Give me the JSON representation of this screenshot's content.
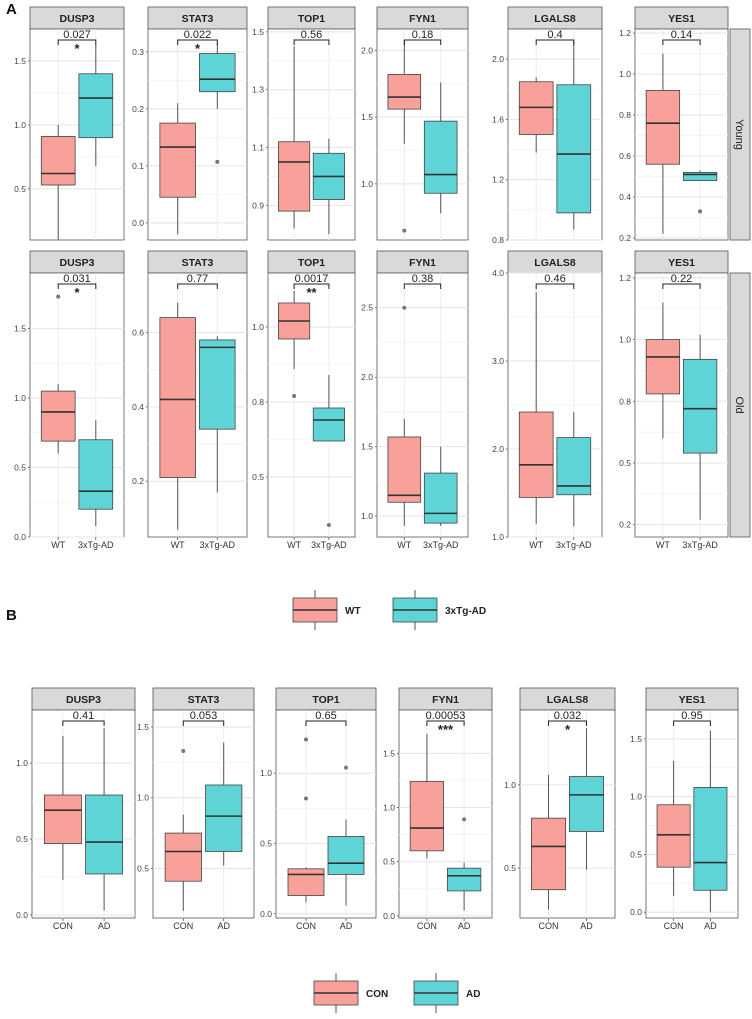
{
  "figure": {
    "panel_a_label": "A",
    "panel_b_label": "B",
    "row_labels": [
      "Young",
      "Old"
    ],
    "colors": {
      "wt": "#f8a19b",
      "tg": "#5ed4d6",
      "con": "#f8a19b",
      "ad": "#5ed4d6",
      "strip": "#d9d9d9",
      "median": "#333333",
      "whisker": "#555555"
    },
    "legend_a": [
      "WT",
      "3xTg-AD"
    ],
    "legend_b": [
      "CON",
      "AD"
    ]
  },
  "chart_data": [
    {
      "type": "box",
      "panel": "A",
      "row": "Young",
      "title": "DUSP3",
      "categories": [
        "WT",
        "3xTg-AD"
      ],
      "ylim": [
        0.1,
        1.75
      ],
      "yticks": [
        "0.5",
        "1.0",
        "1.5"
      ],
      "ytick_values": [
        0.5,
        1.0,
        1.5
      ],
      "pvalue": "0.027",
      "signif": "*",
      "series": [
        {
          "name": "WT",
          "min": 0.1,
          "q1": 0.53,
          "median": 0.62,
          "q3": 0.91,
          "max": 1.0,
          "outliers": []
        },
        {
          "name": "3xTg-AD",
          "min": 0.68,
          "q1": 0.9,
          "median": 1.21,
          "q3": 1.4,
          "max": 1.63,
          "outliers": []
        }
      ]
    },
    {
      "type": "box",
      "panel": "A",
      "row": "Young",
      "title": "STAT3",
      "categories": [
        "WT",
        "3xTg-AD"
      ],
      "ylim": [
        -0.03,
        0.34
      ],
      "yticks": [
        "0.0",
        "0.1",
        "0.2",
        "0.3"
      ],
      "ytick_values": [
        0.0,
        0.1,
        0.2,
        0.3
      ],
      "pvalue": "0.022",
      "signif": "*",
      "series": [
        {
          "name": "WT",
          "min": -0.02,
          "q1": 0.045,
          "median": 0.133,
          "q3": 0.175,
          "max": 0.21,
          "outliers": []
        },
        {
          "name": "3xTg-AD",
          "min": 0.2,
          "q1": 0.23,
          "median": 0.252,
          "q3": 0.297,
          "max": 0.315,
          "outliers": [
            0.107
          ]
        }
      ]
    },
    {
      "type": "box",
      "panel": "A",
      "row": "Young",
      "title": "TOP1",
      "categories": [
        "WT",
        "3xTg-AD"
      ],
      "ylim": [
        0.78,
        1.51
      ],
      "yticks": [
        "0.9",
        "1.1",
        "1.3",
        "1.5"
      ],
      "ytick_values": [
        0.9,
        1.1,
        1.3,
        1.5
      ],
      "pvalue": "0.56",
      "signif": "",
      "series": [
        {
          "name": "WT",
          "min": 0.82,
          "q1": 0.88,
          "median": 1.05,
          "q3": 1.12,
          "max": 1.45,
          "outliers": []
        },
        {
          "name": "3xTg-AD",
          "min": 0.8,
          "q1": 0.92,
          "median": 1.0,
          "q3": 1.08,
          "max": 1.13,
          "outliers": []
        }
      ]
    },
    {
      "type": "box",
      "panel": "A",
      "row": "Young",
      "title": "FYN1",
      "categories": [
        "WT",
        "3xTg-AD"
      ],
      "ylim": [
        0.58,
        2.16
      ],
      "yticks": [
        "1.0",
        "1.5",
        "2.0"
      ],
      "ytick_values": [
        1.0,
        1.5,
        2.0
      ],
      "pvalue": "0.18",
      "signif": "",
      "series": [
        {
          "name": "WT",
          "min": 1.3,
          "q1": 1.56,
          "median": 1.65,
          "q3": 1.82,
          "max": 2.08,
          "outliers": [
            0.65
          ]
        },
        {
          "name": "3xTg-AD",
          "min": 0.78,
          "q1": 0.93,
          "median": 1.07,
          "q3": 1.47,
          "max": 1.76,
          "outliers": []
        }
      ]
    },
    {
      "type": "box",
      "panel": "A",
      "row": "Young",
      "title": "LGALS8",
      "categories": [
        "WT",
        "3xTg-AD"
      ],
      "ylim": [
        0.8,
        2.2
      ],
      "yticks": [
        "0.8",
        "1.2",
        "1.6",
        "2.0"
      ],
      "ytick_values": [
        0.8,
        1.2,
        1.6,
        2.0
      ],
      "pvalue": "0.4",
      "signif": "",
      "series": [
        {
          "name": "WT",
          "min": 1.38,
          "q1": 1.5,
          "median": 1.68,
          "q3": 1.85,
          "max": 1.88,
          "outliers": []
        },
        {
          "name": "3xTg-AD",
          "min": 0.87,
          "q1": 0.98,
          "median": 1.37,
          "q3": 1.83,
          "max": 2.12,
          "outliers": []
        }
      ]
    },
    {
      "type": "box",
      "panel": "A",
      "row": "Young",
      "title": "YES1",
      "categories": [
        "WT",
        "3xTg-AD"
      ],
      "ylim": [
        0.19,
        1.22
      ],
      "yticks": [
        "0.2",
        "0.4",
        "0.6",
        "0.8",
        "1.0",
        "1.2"
      ],
      "ytick_values": [
        0.2,
        0.4,
        0.6,
        0.8,
        1.0,
        1.2
      ],
      "pvalue": "0.14",
      "signif": "",
      "series": [
        {
          "name": "WT",
          "min": 0.22,
          "q1": 0.56,
          "median": 0.76,
          "q3": 0.92,
          "max": 1.1,
          "outliers": []
        },
        {
          "name": "3xTg-AD",
          "min": 0.48,
          "q1": 0.48,
          "median": 0.51,
          "q3": 0.52,
          "max": 0.53,
          "outliers": [
            0.33
          ]
        }
      ]
    },
    {
      "type": "box",
      "panel": "A",
      "row": "Old",
      "title": "DUSP3",
      "categories": [
        "WT",
        "3xTg-AD"
      ],
      "ylim": [
        0.0,
        1.9
      ],
      "yticks": [
        "0.0",
        "0.5",
        "1.0",
        "1.5"
      ],
      "ytick_values": [
        0.0,
        0.5,
        1.0,
        1.5
      ],
      "pvalue": "0.031",
      "signif": "*",
      "series": [
        {
          "name": "WT",
          "min": 0.6,
          "q1": 0.69,
          "median": 0.9,
          "q3": 1.05,
          "max": 1.1,
          "outliers": [
            1.73
          ]
        },
        {
          "name": "3xTg-AD",
          "min": 0.08,
          "q1": 0.2,
          "median": 0.33,
          "q3": 0.7,
          "max": 0.84,
          "outliers": []
        }
      ]
    },
    {
      "type": "box",
      "panel": "A",
      "row": "Old",
      "title": "STAT3",
      "categories": [
        "WT",
        "3xTg-AD"
      ],
      "ylim": [
        0.05,
        0.76
      ],
      "yticks": [
        "0.2",
        "0.4",
        "0.6"
      ],
      "ytick_values": [
        0.2,
        0.4,
        0.6
      ],
      "pvalue": "0.77",
      "signif": "",
      "series": [
        {
          "name": "WT",
          "min": 0.07,
          "q1": 0.21,
          "median": 0.42,
          "q3": 0.64,
          "max": 0.68,
          "outliers": []
        },
        {
          "name": "3xTg-AD",
          "min": 0.17,
          "q1": 0.34,
          "median": 0.56,
          "q3": 0.58,
          "max": 0.59,
          "outliers": []
        }
      ]
    },
    {
      "type": "box",
      "panel": "A",
      "row": "Old",
      "title": "TOP1",
      "categories": [
        "WT",
        "3xTg-AD"
      ],
      "ylim": [
        0.3,
        1.18
      ],
      "yticks": [
        "0.5",
        "0.8",
        "1.0"
      ],
      "ytick_values": [
        0.5,
        0.75,
        1.0
      ],
      "pvalue": "0.0017",
      "signif": "**",
      "series": [
        {
          "name": "WT",
          "min": 0.86,
          "q1": 0.96,
          "median": 1.02,
          "q3": 1.08,
          "max": 1.12,
          "outliers": [
            0.77
          ]
        },
        {
          "name": "3xTg-AD",
          "min": 0.62,
          "q1": 0.62,
          "median": 0.69,
          "q3": 0.73,
          "max": 0.84,
          "outliers": [
            0.34
          ]
        }
      ]
    },
    {
      "type": "box",
      "panel": "A",
      "row": "Old",
      "title": "FYN1",
      "categories": [
        "WT",
        "3xTg-AD"
      ],
      "ylim": [
        0.85,
        2.75
      ],
      "yticks": [
        "1.0",
        "1.5",
        "2.0",
        "2.5"
      ],
      "ytick_values": [
        1.0,
        1.5,
        2.0,
        2.5
      ],
      "pvalue": "0.38",
      "signif": "",
      "series": [
        {
          "name": "WT",
          "min": 0.93,
          "q1": 1.1,
          "median": 1.15,
          "q3": 1.57,
          "max": 1.7,
          "outliers": [
            2.5
          ]
        },
        {
          "name": "3xTg-AD",
          "min": 0.93,
          "q1": 0.95,
          "median": 1.02,
          "q3": 1.31,
          "max": 1.5,
          "outliers": []
        }
      ]
    },
    {
      "type": "box",
      "panel": "A",
      "row": "Old",
      "title": "LGALS8",
      "categories": [
        "WT",
        "3xTg-AD"
      ],
      "ylim": [
        1.0,
        4.0
      ],
      "yticks": [
        "1.0",
        "2.0",
        "3.0",
        "4.0"
      ],
      "ytick_values": [
        1.0,
        2.0,
        3.0,
        4.0
      ],
      "pvalue": "0.46",
      "signif": "",
      "series": [
        {
          "name": "WT",
          "min": 1.15,
          "q1": 1.45,
          "median": 1.82,
          "q3": 2.42,
          "max": 3.78,
          "outliers": []
        },
        {
          "name": "3xTg-AD",
          "min": 1.12,
          "q1": 1.48,
          "median": 1.58,
          "q3": 2.13,
          "max": 2.42,
          "outliers": []
        }
      ]
    },
    {
      "type": "box",
      "panel": "A",
      "row": "Old",
      "title": "YES1",
      "categories": [
        "WT",
        "3xTg-AD"
      ],
      "ylim": [
        0.2,
        1.27
      ],
      "yticks": [
        "0.2",
        "0.5",
        "0.8",
        "1.0",
        "1.2"
      ],
      "ytick_values": [
        0.25,
        0.5,
        0.75,
        1.0,
        1.25
      ],
      "pvalue": "0.22",
      "signif": "",
      "series": [
        {
          "name": "WT",
          "min": 0.6,
          "q1": 0.78,
          "median": 0.93,
          "q3": 1.0,
          "max": 1.15,
          "outliers": []
        },
        {
          "name": "3xTg-AD",
          "min": 0.27,
          "q1": 0.54,
          "median": 0.72,
          "q3": 0.92,
          "max": 1.02,
          "outliers": []
        }
      ]
    },
    {
      "type": "box",
      "panel": "B",
      "title": "DUSP3",
      "categories": [
        "CON",
        "AD"
      ],
      "ylim": [
        -0.02,
        1.35
      ],
      "yticks": [
        "0.0",
        "0.5",
        "1.0"
      ],
      "ytick_values": [
        0.0,
        0.5,
        1.0
      ],
      "pvalue": "0.41",
      "signif": "",
      "series": [
        {
          "name": "CON",
          "min": 0.23,
          "q1": 0.47,
          "median": 0.69,
          "q3": 0.79,
          "max": 1.18,
          "outliers": []
        },
        {
          "name": "AD",
          "min": 0.03,
          "q1": 0.27,
          "median": 0.48,
          "q3": 0.79,
          "max": 1.23,
          "outliers": []
        }
      ]
    },
    {
      "type": "box",
      "panel": "B",
      "title": "STAT3",
      "categories": [
        "CON",
        "AD"
      ],
      "ylim": [
        0.15,
        1.62
      ],
      "yticks": [
        "0.5",
        "1.0",
        "1.5"
      ],
      "ytick_values": [
        0.5,
        1.0,
        1.5
      ],
      "pvalue": "0.053",
      "signif": "",
      "series": [
        {
          "name": "CON",
          "min": 0.2,
          "q1": 0.41,
          "median": 0.62,
          "q3": 0.75,
          "max": 0.88,
          "outliers": [
            1.33
          ]
        },
        {
          "name": "AD",
          "min": 0.52,
          "q1": 0.62,
          "median": 0.87,
          "q3": 1.09,
          "max": 1.39,
          "outliers": []
        }
      ]
    },
    {
      "type": "box",
      "panel": "B",
      "title": "TOP1",
      "categories": [
        "CON",
        "AD"
      ],
      "ylim": [
        -0.03,
        1.45
      ],
      "yticks": [
        "0.0",
        "0.5",
        "1.0"
      ],
      "ytick_values": [
        0.0,
        0.5,
        1.0
      ],
      "pvalue": "0.65",
      "signif": "",
      "series": [
        {
          "name": "CON",
          "min": 0.08,
          "q1": 0.13,
          "median": 0.28,
          "q3": 0.32,
          "max": 0.33,
          "outliers": [
            1.24,
            0.82
          ]
        },
        {
          "name": "AD",
          "min": 0.06,
          "q1": 0.28,
          "median": 0.36,
          "q3": 0.55,
          "max": 0.67,
          "outliers": [
            1.04
          ]
        }
      ]
    },
    {
      "type": "box",
      "panel": "B",
      "title": "FYN1",
      "categories": [
        "CON",
        "AD"
      ],
      "ylim": [
        -0.02,
        1.9
      ],
      "yticks": [
        "0.0",
        "0.5",
        "1.0",
        "1.5"
      ],
      "ytick_values": [
        0.0,
        0.5,
        1.0,
        1.5
      ],
      "pvalue": "0.00053",
      "signif": "***",
      "series": [
        {
          "name": "CON",
          "min": 0.53,
          "q1": 0.6,
          "median": 0.81,
          "q3": 1.24,
          "max": 1.68,
          "outliers": []
        },
        {
          "name": "AD",
          "min": 0.05,
          "q1": 0.23,
          "median": 0.37,
          "q3": 0.44,
          "max": 0.49,
          "outliers": [
            0.89
          ]
        }
      ]
    },
    {
      "type": "box",
      "panel": "B",
      "title": "LGALS8",
      "categories": [
        "CON",
        "AD"
      ],
      "ylim": [
        0.2,
        1.45
      ],
      "yticks": [
        "0.5",
        "1.0"
      ],
      "ytick_values": [
        0.5,
        1.0
      ],
      "pvalue": "0.032",
      "signif": "*",
      "series": [
        {
          "name": "CON",
          "min": 0.25,
          "q1": 0.37,
          "median": 0.63,
          "q3": 0.8,
          "max": 1.06,
          "outliers": []
        },
        {
          "name": "AD",
          "min": 0.49,
          "q1": 0.72,
          "median": 0.94,
          "q3": 1.05,
          "max": 1.34,
          "outliers": []
        }
      ]
    },
    {
      "type": "box",
      "panel": "B",
      "title": "YES1",
      "categories": [
        "CON",
        "AD"
      ],
      "ylim": [
        -0.05,
        1.75
      ],
      "yticks": [
        "0.0",
        "0.5",
        "1.0",
        "1.5"
      ],
      "ytick_values": [
        0.0,
        0.5,
        1.0,
        1.5
      ],
      "pvalue": "0.95",
      "signif": "",
      "series": [
        {
          "name": "CON",
          "min": 0.14,
          "q1": 0.39,
          "median": 0.67,
          "q3": 0.93,
          "max": 1.31,
          "outliers": []
        },
        {
          "name": "AD",
          "min": 0.0,
          "q1": 0.19,
          "median": 0.43,
          "q3": 1.08,
          "max": 1.57,
          "outliers": []
        }
      ]
    }
  ]
}
